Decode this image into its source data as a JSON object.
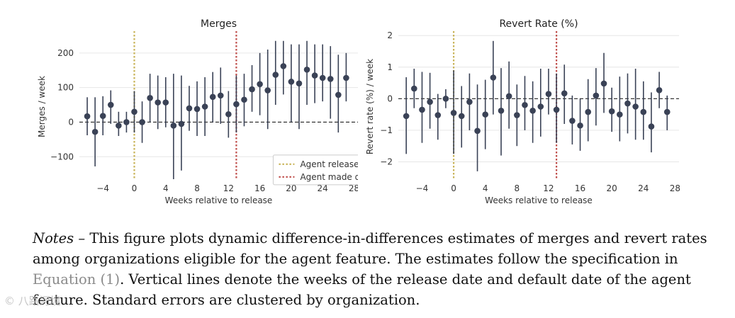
{
  "chart_data": [
    {
      "id": "merges",
      "type": "scatter",
      "title": "Merges",
      "xlabel": "Weeks relative to release",
      "ylabel": "Merges / week",
      "xlim": [
        -7,
        28.5
      ],
      "ylim": [
        -165,
        255
      ],
      "xticks": [
        -4,
        0,
        4,
        8,
        12,
        16,
        20,
        24,
        28
      ],
      "xtick_labels": [
        "−4",
        "0",
        "4",
        "8",
        "12",
        "16",
        "20",
        "24",
        "28"
      ],
      "yticks": [
        -100,
        0,
        100,
        200
      ],
      "ytick_labels": [
        "−100",
        "0",
        "100",
        "200"
      ],
      "grid": "horizontal",
      "zero_line": "dashed",
      "vlines": [
        {
          "x": 0,
          "label": "Agent released",
          "color": "#c9b45a"
        },
        {
          "x": 13,
          "label": "Agent made default",
          "color": "#c0504d"
        }
      ],
      "legend_position": "lower-right",
      "series": [
        {
          "name": "estimate",
          "x": [
            -6,
            -5,
            -4,
            -3,
            -2,
            -1,
            0,
            1,
            2,
            3,
            4,
            5,
            6,
            7,
            8,
            9,
            10,
            11,
            12,
            13,
            14,
            15,
            16,
            17,
            18,
            19,
            20,
            21,
            22,
            23,
            24,
            25,
            26,
            27
          ],
          "y": [
            17,
            -28,
            18,
            50,
            -10,
            0,
            30,
            0,
            70,
            57,
            57,
            -10,
            -5,
            40,
            38,
            45,
            73,
            77,
            23,
            52,
            65,
            95,
            110,
            92,
            137,
            162,
            117,
            112,
            152,
            135,
            128,
            125,
            79,
            128
          ],
          "ci_low": [
            -38,
            -128,
            -38,
            -5,
            -40,
            -30,
            -30,
            -60,
            0,
            -20,
            -15,
            -165,
            -140,
            -25,
            -40,
            -40,
            0,
            -5,
            -45,
            -30,
            -12,
            30,
            20,
            -20,
            50,
            80,
            0,
            -20,
            50,
            55,
            60,
            10,
            -30,
            60
          ],
          "ci_high": [
            72,
            72,
            75,
            92,
            30,
            30,
            90,
            60,
            140,
            135,
            130,
            140,
            135,
            105,
            118,
            130,
            145,
            158,
            90,
            135,
            140,
            165,
            200,
            210,
            235,
            235,
            225,
            225,
            235,
            225,
            225,
            220,
            195,
            200
          ]
        }
      ]
    },
    {
      "id": "revert_rate",
      "type": "scatter",
      "title": "Revert Rate (%)",
      "xlabel": "Weeks relative to release",
      "ylabel": "Revert rate (%) / week",
      "xlim": [
        -7,
        28.5
      ],
      "ylim": [
        -2.55,
        2.05
      ],
      "xticks": [
        -4,
        0,
        4,
        8,
        12,
        16,
        20,
        24,
        28
      ],
      "xtick_labels": [
        "−4",
        "0",
        "4",
        "8",
        "12",
        "16",
        "20",
        "24",
        "28"
      ],
      "yticks": [
        -2,
        -1,
        0,
        1,
        2
      ],
      "ytick_labels": [
        "−2",
        "−1",
        "0",
        "1",
        "2"
      ],
      "grid": "horizontal",
      "zero_line": "dashed",
      "vlines": [
        {
          "x": 0,
          "label": "Agent released",
          "color": "#c9b45a"
        },
        {
          "x": 13,
          "label": "Agent made default",
          "color": "#c0504d"
        }
      ],
      "series": [
        {
          "name": "estimate",
          "x": [
            -6,
            -5,
            -4,
            -3,
            -2,
            -1,
            0,
            1,
            2,
            3,
            4,
            5,
            6,
            7,
            8,
            9,
            10,
            11,
            12,
            13,
            14,
            15,
            16,
            17,
            18,
            19,
            20,
            21,
            22,
            23,
            24,
            25,
            26,
            27
          ],
          "y": [
            -0.55,
            0.32,
            -0.35,
            -0.1,
            -0.52,
            0,
            -0.45,
            -0.55,
            -0.1,
            -1.02,
            -0.5,
            0.67,
            -0.38,
            0.08,
            -0.52,
            -0.2,
            -0.38,
            -0.25,
            0.15,
            -0.35,
            0.17,
            -0.7,
            -0.85,
            -0.42,
            0.1,
            0.48,
            -0.4,
            -0.5,
            -0.15,
            -0.25,
            -0.42,
            -0.88,
            0.27,
            -0.42
          ],
          "ci_low": [
            -1.75,
            -0.3,
            -1.4,
            -0.95,
            -1.3,
            -0.3,
            -1.75,
            -1.55,
            -1.0,
            -2.3,
            -1.6,
            -0.5,
            -1.8,
            -0.95,
            -1.5,
            -1.0,
            -1.4,
            -1.2,
            -0.5,
            -1.4,
            -0.8,
            -1.45,
            -1.65,
            -1.35,
            -0.85,
            -0.45,
            -1.05,
            -1.35,
            -1.1,
            -1.3,
            -1.3,
            -1.7,
            -0.3,
            -1.0
          ],
          "ci_high": [
            0.68,
            0.95,
            0.85,
            0.82,
            0.15,
            0.3,
            0.9,
            0.4,
            0.8,
            0.45,
            0.6,
            1.83,
            0.97,
            1.18,
            0.45,
            0.72,
            0.55,
            0.95,
            0.95,
            0.8,
            1.08,
            0.1,
            0.0,
            0.62,
            0.97,
            1.45,
            0.35,
            0.7,
            0.8,
            0.95,
            0.55,
            0.2,
            0.85,
            0.1
          ]
        }
      ]
    }
  ],
  "notes": {
    "label": "Notes –",
    "text_before_link": "This figure plots dynamic difference-in-differences estimates of merges and revert rates among organizations eligible for the agent feature. The estimates follow the specification in",
    "link_text": "Equation (1)",
    "text_after_link": ". Vertical lines denote the weeks of the release date and default date of the agent feature. Standard errors are clustered by organization."
  },
  "watermark": "© 八路河境",
  "colors": {
    "point": "#3a4256",
    "errorbar": "#3a4256",
    "release_line": "#c9b45a",
    "default_line": "#c0504d",
    "grid": "#e6e6e6",
    "zero_line": "#222222"
  }
}
